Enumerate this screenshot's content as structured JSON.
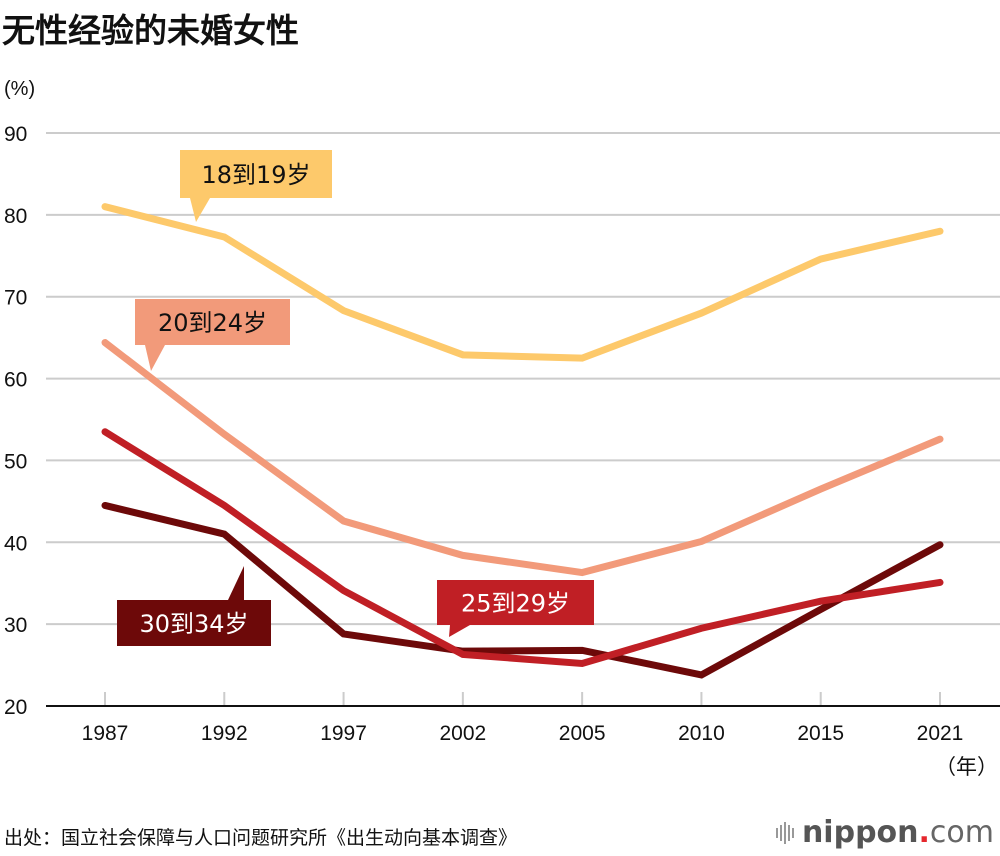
{
  "title": "无性经验的未婚女性",
  "source": "出处：国立社会保障与人口问题研究所《出生动向基本调查》",
  "logo": {
    "icon": "sound-bars-icon",
    "name": "nippon",
    "dot": ".",
    "suffix": "com"
  },
  "chart_data": {
    "type": "line",
    "title": "无性经验的未婚女性",
    "ylabel": "(%)",
    "xlabel": "（年）",
    "categories": [
      "1987",
      "1992",
      "1997",
      "2002",
      "2005",
      "2010",
      "2015",
      "2021"
    ],
    "ylim": [
      20,
      90
    ],
    "yticks": [
      20,
      30,
      40,
      50,
      60,
      70,
      80,
      90
    ],
    "grid": "horizontal",
    "series": [
      {
        "name": "18到19岁",
        "color": "#fdc96b",
        "label_text_color": "#111111",
        "values": [
          81.0,
          77.3,
          68.3,
          62.9,
          62.5,
          68.0,
          74.6,
          78.0
        ]
      },
      {
        "name": "20到24岁",
        "color": "#f29a7a",
        "label_text_color": "#111111",
        "values": [
          64.4,
          53.2,
          42.6,
          38.4,
          36.3,
          40.1,
          46.5,
          52.6
        ]
      },
      {
        "name": "25到29岁",
        "color": "#c01f25",
        "label_text_color": "#ffffff",
        "values": [
          53.5,
          44.5,
          34.1,
          26.3,
          25.2,
          29.5,
          32.8,
          35.1
        ]
      },
      {
        "name": "30到34岁",
        "color": "#6d0909",
        "label_text_color": "#ffffff",
        "values": [
          44.5,
          41.0,
          28.8,
          26.7,
          26.8,
          23.8,
          31.8,
          39.7
        ]
      }
    ]
  }
}
